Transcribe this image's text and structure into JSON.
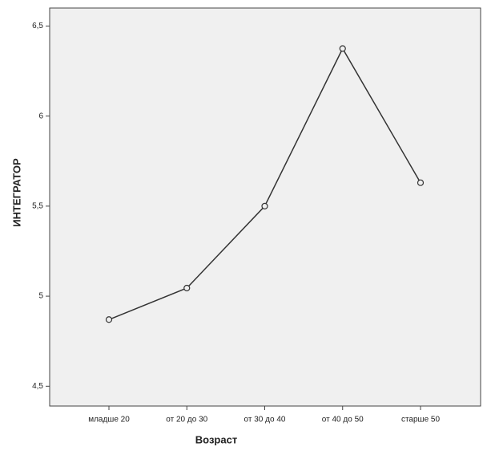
{
  "chart_data": {
    "type": "line",
    "x_label": "Возраст",
    "y_label": "ИНТЕГРАТОР",
    "categories": [
      "младше 20",
      "от 20 до 30",
      "от 30 до 40",
      "от 40 до 50",
      "старше 50"
    ],
    "values": [
      4.87,
      5.045,
      5.5,
      6.375,
      5.63
    ],
    "color": "#333333",
    "ylim": [
      4.39,
      6.6
    ],
    "yticks": [
      {
        "value": 4.5,
        "label": "4,5"
      },
      5,
      {
        "value": 5.5,
        "label": "5,5"
      },
      6,
      {
        "value": 6.5,
        "label": "6,5"
      }
    ],
    "grid": false
  }
}
